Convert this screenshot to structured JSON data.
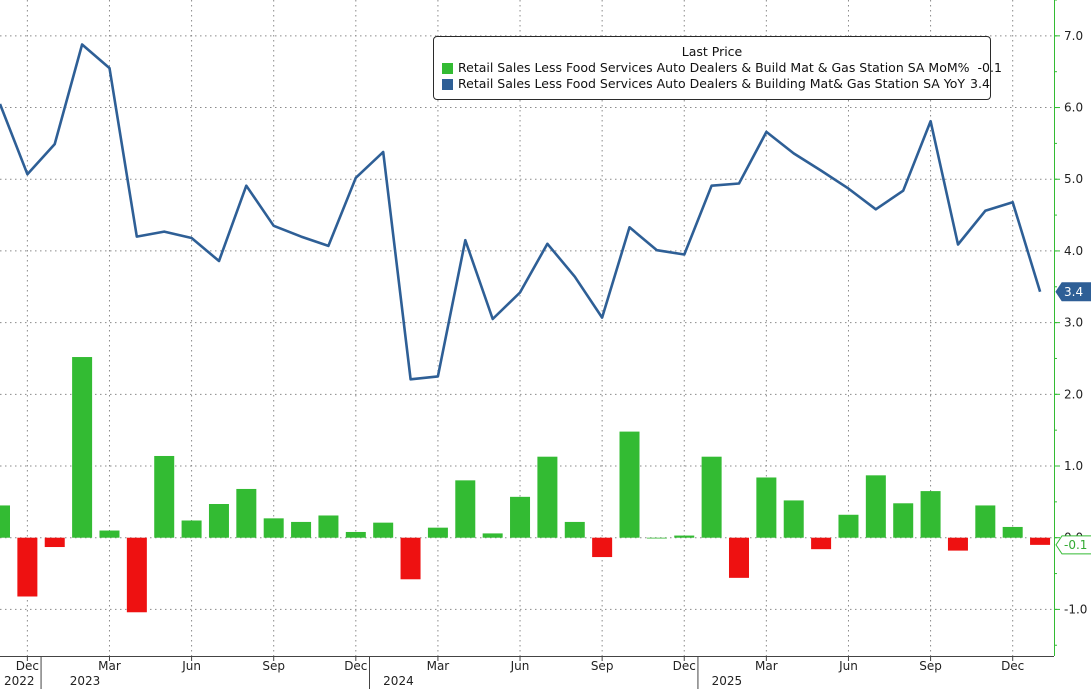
{
  "chart_data": {
    "type": "bar+line",
    "legend": {
      "title": "Last Price",
      "placement": "top-right",
      "entries": [
        {
          "label": "Retail Sales Less Food Services Auto Dealers & Build Mat & Gas Station SA MoM%",
          "value": "-0.1",
          "color": "#33bb33"
        },
        {
          "label": "Retail Sales Less Food Services Auto Dealers & Building Mat& Gas Station SA YoY",
          "value": "3.4",
          "color": "#2e5f96"
        }
      ]
    },
    "y_axis": {
      "position": "right",
      "ticks": [
        7.0,
        6.0,
        5.0,
        4.0,
        3.0,
        2.0,
        1.0,
        0.0,
        -1.0
      ],
      "tick_labels": [
        "7.0",
        "6.0",
        "5.0",
        "4.0",
        "3.0",
        "2.0",
        "1.0",
        "0.0",
        "-1.0"
      ],
      "range": [
        -1.65,
        7.5
      ],
      "grid": true
    },
    "x_axis": {
      "month_ticks": [
        {
          "label": "Dec",
          "index": 1
        },
        {
          "label": "Mar",
          "index": 4
        },
        {
          "label": "Jun",
          "index": 7
        },
        {
          "label": "Sep",
          "index": 10
        },
        {
          "label": "Dec",
          "index": 13
        },
        {
          "label": "Mar",
          "index": 16
        },
        {
          "label": "Jun",
          "index": 19
        },
        {
          "label": "Sep",
          "index": 22
        },
        {
          "label": "Dec",
          "index": 25
        },
        {
          "label": "Mar",
          "index": 28
        },
        {
          "label": "Jun",
          "index": 31
        },
        {
          "label": "Sep",
          "index": 34
        },
        {
          "label": "Dec",
          "index": 37
        }
      ],
      "year_labels": [
        {
          "label": "2022",
          "index": 0
        },
        {
          "label": "2023",
          "index": 2
        },
        {
          "label": "2024",
          "index": 14
        },
        {
          "label": "2025",
          "index": 26
        }
      ],
      "year_dividers": [
        1.5,
        13.5,
        25.5
      ]
    },
    "series": [
      {
        "name": "Retail Sales Less Food Services Auto Dealers & Build Mat & Gas Station SA MoM%",
        "kind": "bar",
        "start_month": "2022-11",
        "positive_color": "#33bb33",
        "negative_color": "#ee1111",
        "values": [
          0.45,
          -0.82,
          -0.13,
          2.52,
          0.1,
          -1.04,
          1.14,
          0.24,
          0.47,
          0.68,
          0.27,
          0.22,
          0.31,
          0.08,
          0.21,
          -0.58,
          0.14,
          0.8,
          0.06,
          0.57,
          1.13,
          0.22,
          -0.27,
          1.48,
          0.0,
          0.03,
          1.13,
          -0.56,
          0.84,
          0.52,
          -0.16,
          0.32,
          0.87,
          0.48,
          0.65,
          -0.18,
          0.45,
          0.15,
          -0.1
        ]
      },
      {
        "name": "Retail Sales Less Food Services Auto Dealers & Building Mat& Gas Station SA YoY",
        "kind": "line",
        "start_month": "2022-11",
        "color": "#2e5f96",
        "values": [
          6.05,
          5.07,
          5.49,
          6.88,
          6.55,
          4.2,
          4.27,
          4.18,
          3.86,
          4.91,
          4.35,
          4.2,
          4.07,
          5.02,
          5.38,
          2.21,
          2.25,
          4.15,
          3.05,
          3.42,
          4.1,
          3.64,
          3.07,
          4.33,
          4.01,
          3.95,
          4.91,
          4.94,
          5.66,
          5.36,
          5.12,
          4.87,
          4.58,
          4.84,
          5.81,
          4.09,
          4.56,
          4.68,
          3.43
        ]
      }
    ],
    "last_value_labels": [
      {
        "series": 1,
        "text": "3.4",
        "value": 3.43
      },
      {
        "series": 0,
        "text": "-0.1",
        "value": -0.1
      }
    ]
  }
}
